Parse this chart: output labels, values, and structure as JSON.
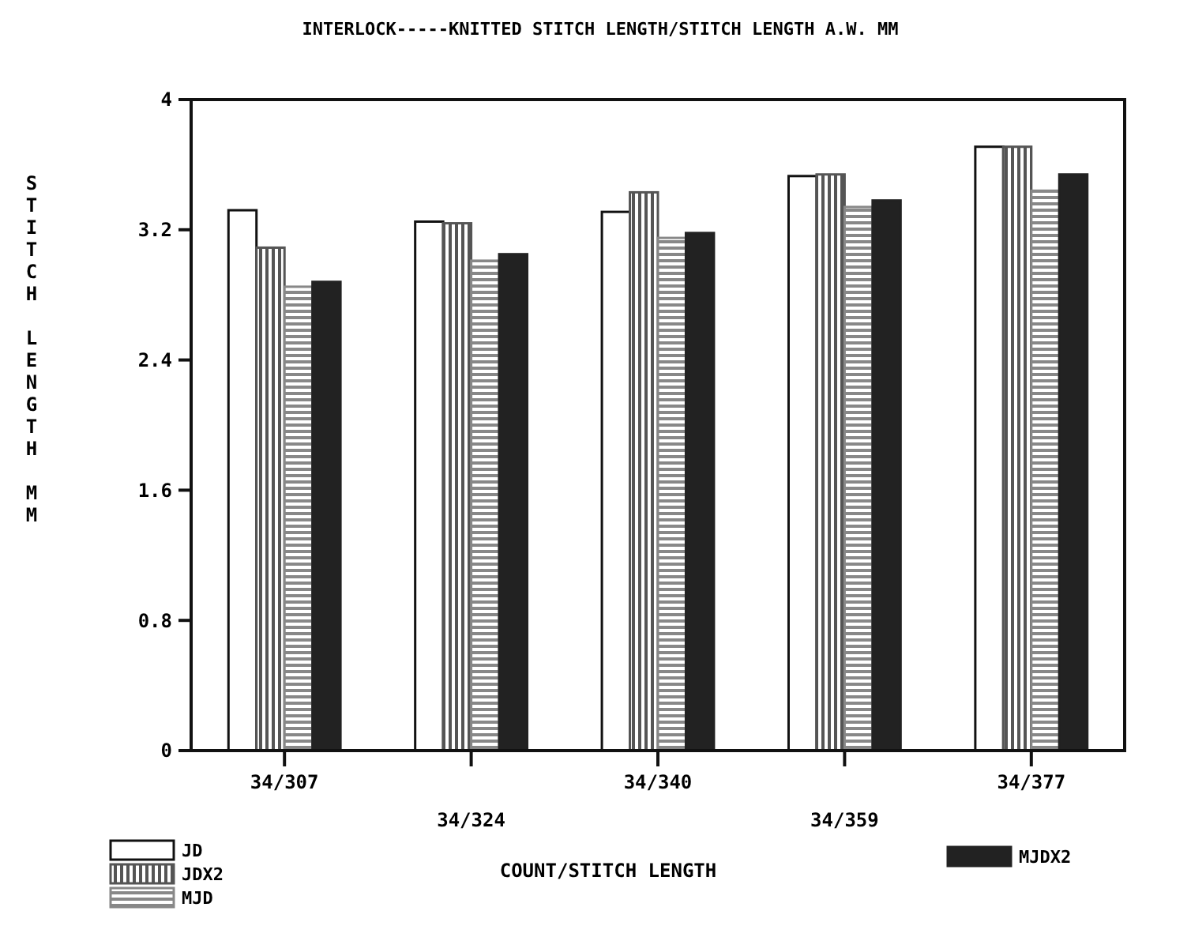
{
  "chart_data": {
    "type": "bar",
    "title": "INTERLOCK-----KNITTED STITCH LENGTH/STITCH LENGTH A.W. MM",
    "xlabel": "COUNT/STITCH LENGTH",
    "ylabel": "STITCH LENGTH MM",
    "categories": [
      "34/307",
      "34/324",
      "34/340",
      "34/359",
      "34/377"
    ],
    "series": [
      {
        "name": "JD",
        "color": "#ffffff",
        "values": [
          3.32,
          3.25,
          3.31,
          3.53,
          3.71
        ]
      },
      {
        "name": "JDX2",
        "color": "#555555",
        "values": [
          3.09,
          3.24,
          3.43,
          3.54,
          3.71
        ]
      },
      {
        "name": "MJD",
        "color": "#888888",
        "values": [
          2.85,
          3.01,
          3.15,
          3.34,
          3.44
        ]
      },
      {
        "name": "MJDX2",
        "color": "#222222",
        "values": [
          2.88,
          3.05,
          3.18,
          3.38,
          3.54
        ]
      }
    ],
    "ylim": [
      0,
      4
    ],
    "yticks": [
      0,
      0.8,
      1.6,
      2.4,
      3.2,
      4
    ],
    "grid": false,
    "legend": "bottom"
  }
}
